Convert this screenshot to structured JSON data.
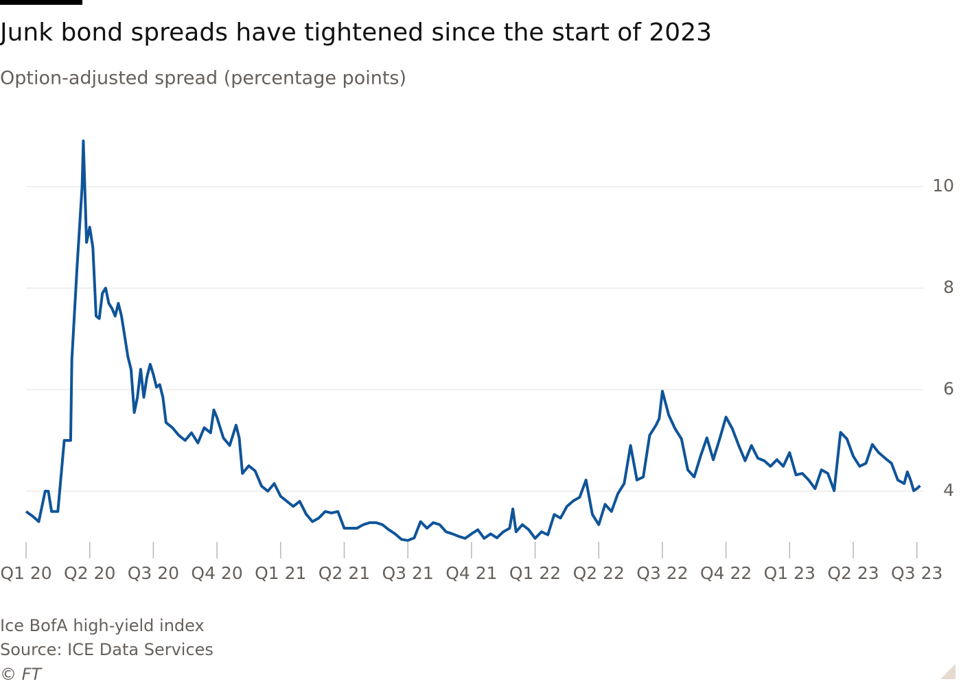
{
  "chart_data": {
    "type": "line",
    "title": "Junk bond spreads have tightened since the start of 2023",
    "subtitle": "Option-adjusted spread (percentage points)",
    "notes": [
      "Ice BofA high-yield index",
      "Source: ICE Data Services",
      "© FT"
    ],
    "color": "#0f5499",
    "grid": true,
    "xlim": [
      0,
      14.1
    ],
    "ylim": [
      3,
      11
    ],
    "yticks": [
      4,
      6,
      8,
      10
    ],
    "xticks": [
      {
        "value": 0,
        "label": "Q1 20"
      },
      {
        "value": 1,
        "label": "Q2 20"
      },
      {
        "value": 2,
        "label": "Q3 20"
      },
      {
        "value": 3,
        "label": "Q4 20"
      },
      {
        "value": 4,
        "label": "Q1 21"
      },
      {
        "value": 5,
        "label": "Q2 21"
      },
      {
        "value": 6,
        "label": "Q3 21"
      },
      {
        "value": 7,
        "label": "Q4 21"
      },
      {
        "value": 8,
        "label": "Q1 22"
      },
      {
        "value": 9,
        "label": "Q2 22"
      },
      {
        "value": 10,
        "label": "Q3 22"
      },
      {
        "value": 11,
        "label": "Q4 22"
      },
      {
        "value": 12,
        "label": "Q1 23"
      },
      {
        "value": 13,
        "label": "Q2 23"
      },
      {
        "value": 14,
        "label": "Q3 23"
      }
    ],
    "x": [
      0,
      0.1,
      0.2,
      0.3,
      0.35,
      0.4,
      0.5,
      0.6,
      0.7,
      0.72,
      0.8,
      0.88,
      0.9,
      0.95,
      1.0,
      1.05,
      1.1,
      1.15,
      1.2,
      1.25,
      1.3,
      1.35,
      1.4,
      1.45,
      1.5,
      1.55,
      1.6,
      1.65,
      1.7,
      1.75,
      1.8,
      1.85,
      1.9,
      1.95,
      2.0,
      2.05,
      2.1,
      2.15,
      2.2,
      2.3,
      2.4,
      2.5,
      2.6,
      2.7,
      2.8,
      2.9,
      2.95,
      3.0,
      3.1,
      3.2,
      3.3,
      3.35,
      3.4,
      3.5,
      3.6,
      3.7,
      3.8,
      3.9,
      4.0,
      4.1,
      4.2,
      4.3,
      4.4,
      4.5,
      4.6,
      4.7,
      4.8,
      4.9,
      5.0,
      5.1,
      5.2,
      5.3,
      5.4,
      5.5,
      5.6,
      5.7,
      5.8,
      5.9,
      6.0,
      6.1,
      6.2,
      6.3,
      6.4,
      6.5,
      6.6,
      6.7,
      6.8,
      6.9,
      7.0,
      7.1,
      7.2,
      7.3,
      7.4,
      7.5,
      7.6,
      7.65,
      7.7,
      7.8,
      7.9,
      8.0,
      8.1,
      8.2,
      8.3,
      8.4,
      8.5,
      8.6,
      8.7,
      8.8,
      8.9,
      9.0,
      9.1,
      9.2,
      9.3,
      9.4,
      9.5,
      9.6,
      9.7,
      9.8,
      9.9,
      9.95,
      10.0,
      10.1,
      10.2,
      10.3,
      10.4,
      10.5,
      10.6,
      10.7,
      10.8,
      10.9,
      11.0,
      11.1,
      11.2,
      11.3,
      11.4,
      11.5,
      11.6,
      11.7,
      11.8,
      11.9,
      12.0,
      12.1,
      12.2,
      12.3,
      12.4,
      12.5,
      12.6,
      12.7,
      12.8,
      12.9,
      13.0,
      13.1,
      13.2,
      13.3,
      13.4,
      13.5,
      13.6,
      13.7,
      13.8,
      13.85,
      13.9,
      13.95,
      14.0,
      14.05
    ],
    "values": [
      3.6,
      3.51,
      3.4,
      4.0,
      4.0,
      3.6,
      3.6,
      5.0,
      5.0,
      6.6,
      8.4,
      10.0,
      10.9,
      8.9,
      9.2,
      8.8,
      7.45,
      7.4,
      7.9,
      8.0,
      7.7,
      7.6,
      7.45,
      7.7,
      7.45,
      7.05,
      6.65,
      6.4,
      5.55,
      5.85,
      6.4,
      5.85,
      6.25,
      6.5,
      6.3,
      6.05,
      6.1,
      5.85,
      5.35,
      5.25,
      5.1,
      5.0,
      5.15,
      4.95,
      5.25,
      5.15,
      5.6,
      5.45,
      5.05,
      4.9,
      5.3,
      5.05,
      4.35,
      4.5,
      4.4,
      4.1,
      4.0,
      4.15,
      3.9,
      3.8,
      3.7,
      3.8,
      3.55,
      3.4,
      3.47,
      3.6,
      3.57,
      3.6,
      3.27,
      3.27,
      3.27,
      3.34,
      3.38,
      3.38,
      3.34,
      3.24,
      3.16,
      3.05,
      3.03,
      3.08,
      3.4,
      3.27,
      3.38,
      3.34,
      3.2,
      3.16,
      3.11,
      3.07,
      3.16,
      3.24,
      3.07,
      3.16,
      3.08,
      3.2,
      3.27,
      3.65,
      3.2,
      3.34,
      3.24,
      3.07,
      3.2,
      3.14,
      3.54,
      3.47,
      3.7,
      3.81,
      3.88,
      4.22,
      3.54,
      3.34,
      3.74,
      3.6,
      3.95,
      4.15,
      4.9,
      4.22,
      4.28,
      5.1,
      5.3,
      5.43,
      5.97,
      5.5,
      5.23,
      5.03,
      4.42,
      4.28,
      4.69,
      5.05,
      4.62,
      5.03,
      5.46,
      5.23,
      4.9,
      4.6,
      4.9,
      4.65,
      4.6,
      4.49,
      4.62,
      4.49,
      4.76,
      4.32,
      4.35,
      4.22,
      4.05,
      4.42,
      4.35,
      4.01,
      5.16,
      5.03,
      4.69,
      4.49,
      4.55,
      4.92,
      4.76,
      4.65,
      4.55,
      4.22,
      4.15,
      4.38,
      4.22,
      4.01,
      4.05,
      4.11
    ]
  }
}
